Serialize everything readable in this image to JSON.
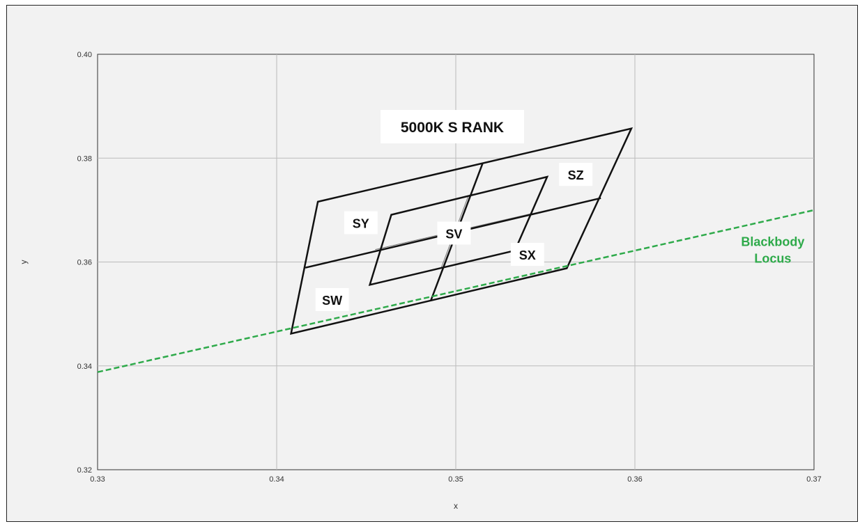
{
  "chart_data": {
    "type": "scatter",
    "title": "5000K S RANK",
    "xlabel": "x",
    "ylabel": "y",
    "xlim": [
      0.33,
      0.37
    ],
    "ylim": [
      0.32,
      0.4
    ],
    "x_ticks": [
      "0.33",
      "0.34",
      "0.35",
      "0.36",
      "0.37"
    ],
    "y_ticks": [
      "0.32",
      "0.34",
      "0.36",
      "0.38",
      "0.40"
    ],
    "grid": true,
    "outer_quadrangle": [
      [
        0.3423,
        0.3716
      ],
      [
        0.3598,
        0.3857
      ],
      [
        0.3562,
        0.3588
      ],
      [
        0.3408,
        0.3462
      ]
    ],
    "inner_quadrangle": [
      [
        0.3464,
        0.3691
      ],
      [
        0.3551,
        0.3764
      ],
      [
        0.3533,
        0.3622
      ],
      [
        0.3452,
        0.3556
      ]
    ],
    "bin_dividers": [
      {
        "from": [
          0.3416,
          0.3589
        ],
        "to": [
          0.3581,
          0.3723
        ]
      },
      {
        "from": [
          0.3515,
          0.379
        ],
        "to": [
          0.3486,
          0.3525
        ]
      }
    ],
    "center_lines": [
      {
        "from": [
          0.3455,
          0.3624
        ],
        "to": [
          0.3542,
          0.3693
        ]
      },
      {
        "from": [
          0.3507,
          0.3727
        ],
        "to": [
          0.3492,
          0.359
        ]
      }
    ],
    "bin_labels": [
      {
        "text": "SZ",
        "x": 0.3567,
        "y": 0.3768
      },
      {
        "text": "SY",
        "x": 0.3447,
        "y": 0.3675
      },
      {
        "text": "SV",
        "x": 0.3499,
        "y": 0.3655
      },
      {
        "text": "SX",
        "x": 0.354,
        "y": 0.3614
      },
      {
        "text": "SW",
        "x": 0.3431,
        "y": 0.3527
      }
    ],
    "series": [
      {
        "name": "Blackbody Locus",
        "color": "#2eaa4a",
        "style": "dashed",
        "x": [
          0.33,
          0.37
        ],
        "y": [
          0.3388,
          0.37
        ]
      }
    ],
    "annotation": {
      "text_line1": "Blackbody",
      "text_line2": "Locus",
      "x": 0.3677,
      "y": 0.3612
    }
  }
}
